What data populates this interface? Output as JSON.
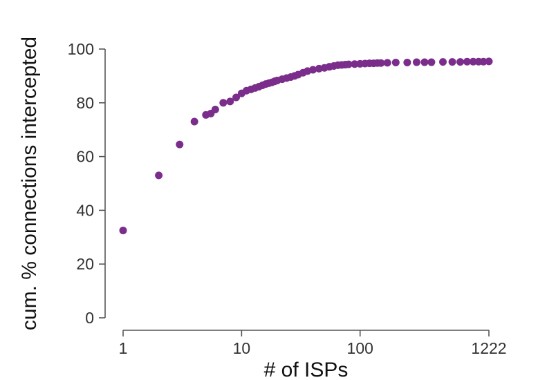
{
  "chart_data": {
    "type": "scatter",
    "title": "",
    "xlabel": "# of ISPs",
    "ylabel": "cum. % connections intercepted",
    "x_scale": "log",
    "xlim": [
      1,
      1222
    ],
    "ylim": [
      0,
      100
    ],
    "x_ticks": [
      1,
      10,
      100,
      1222
    ],
    "x_tick_labels": [
      "1",
      "10",
      "100",
      "1222"
    ],
    "y_ticks": [
      0,
      20,
      40,
      60,
      80,
      100
    ],
    "y_tick_labels": [
      "0",
      "20",
      "40",
      "60",
      "80",
      "100"
    ],
    "grid": false,
    "legend": "none",
    "colors": {
      "points": "#7b2d8b",
      "axis": "#555555"
    },
    "series": [
      {
        "x": [
          1,
          2,
          3,
          4,
          5,
          5.5,
          6,
          7,
          8,
          9,
          10,
          11,
          12,
          13,
          14,
          15,
          16,
          17,
          18,
          19,
          20,
          22,
          24,
          26,
          28,
          30,
          33,
          36,
          40,
          45,
          50,
          55,
          60,
          65,
          70,
          75,
          80,
          90,
          100,
          110,
          120,
          130,
          140,
          150,
          170,
          200,
          250,
          300,
          350,
          400,
          500,
          600,
          700,
          800,
          900,
          1000,
          1100,
          1222
        ],
        "y": [
          32.5,
          53,
          64.5,
          73,
          75.5,
          76,
          77.5,
          80,
          80.5,
          82,
          83.5,
          84.5,
          85,
          85.5,
          86,
          86.5,
          87,
          87.3,
          87.6,
          88,
          88.3,
          88.8,
          89.2,
          89.6,
          90,
          90.5,
          91.2,
          91.8,
          92.3,
          92.7,
          93,
          93.4,
          93.7,
          94,
          94.1,
          94.2,
          94.3,
          94.4,
          94.5,
          94.6,
          94.7,
          94.7,
          94.8,
          94.8,
          94.9,
          95,
          95,
          95.1,
          95.1,
          95.1,
          95.2,
          95.2,
          95.2,
          95.3,
          95.3,
          95.3,
          95.3,
          95.4
        ]
      }
    ]
  }
}
